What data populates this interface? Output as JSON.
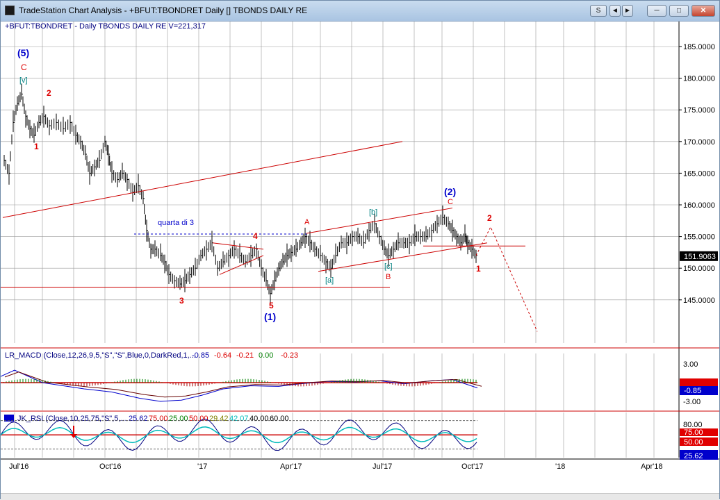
{
  "window": {
    "title": "TradeStation Chart Analysis - +BFUT:TBONDRET Daily [] TBONDS DAILY RE",
    "buttons": [
      "S",
      "◄",
      "►"
    ]
  },
  "price_panel": {
    "header": "+BFUT:TBONDRET - Daily  TBONDS DAILY RE   V=221,317",
    "y_ticks": [
      "185.0000",
      "180.0000",
      "175.0000",
      "170.0000",
      "165.0000",
      "160.0000",
      "155.0000",
      "150.0000",
      "145.0000"
    ],
    "y_tick_values": [
      185,
      180,
      175,
      170,
      165,
      160,
      155,
      150,
      145
    ],
    "last_price": "151.9063",
    "annotations": [
      {
        "text": "(5)",
        "color": "#0000cc",
        "bold": true,
        "size": 14
      },
      {
        "text": "C",
        "color": "#dd0000",
        "bold": false,
        "size": 12
      },
      {
        "text": "[v]",
        "color": "#008080",
        "bold": false,
        "size": 11
      },
      {
        "text": "2",
        "color": "#dd0000",
        "bold": true,
        "size": 12
      },
      {
        "text": "1",
        "color": "#dd0000",
        "bold": true,
        "size": 12
      },
      {
        "text": "quarta di 3",
        "color": "#0000cc",
        "bold": false,
        "size": 11
      },
      {
        "text": "4",
        "color": "#dd0000",
        "bold": true,
        "size": 12
      },
      {
        "text": "3",
        "color": "#dd0000",
        "bold": true,
        "size": 12
      },
      {
        "text": "5",
        "color": "#dd0000",
        "bold": true,
        "size": 12
      },
      {
        "text": "(1)",
        "color": "#0000cc",
        "bold": true,
        "size": 14
      },
      {
        "text": "A",
        "color": "#dd0000",
        "bold": false,
        "size": 11
      },
      {
        "text": "[a]",
        "color": "#008080",
        "bold": false,
        "size": 11
      },
      {
        "text": "[b]",
        "color": "#008080",
        "bold": false,
        "size": 11
      },
      {
        "text": "[c]",
        "color": "#008080",
        "bold": false,
        "size": 11
      },
      {
        "text": "B",
        "color": "#dd0000",
        "bold": false,
        "size": 11
      },
      {
        "text": "(2)",
        "color": "#0000cc",
        "bold": true,
        "size": 14
      },
      {
        "text": "C",
        "color": "#dd0000",
        "bold": false,
        "size": 11
      },
      {
        "text": "2",
        "color": "#dd0000",
        "bold": true,
        "size": 12
      },
      {
        "text": "1",
        "color": "#dd0000",
        "bold": true,
        "size": 12
      }
    ]
  },
  "macd_panel": {
    "header_label": "LR_MACD (Close,12,26,9,5,\"S\",\"S\",Blue,0,DarkRed,1,...",
    "values": [
      "-0.85",
      "-0.64",
      "-0.21",
      "0.00",
      "-0.23"
    ],
    "y_ticks": [
      "3.00",
      "-3.00"
    ],
    "last_tags": [
      {
        "text": "",
        "bg": "#e00000",
        "fg": "#ffffff"
      },
      {
        "text": "-0.85",
        "bg": "#0000cc",
        "fg": "#ffffff"
      }
    ]
  },
  "rsi_panel": {
    "header_label": "JK_RSI (Close,10,25,75,\"S\",5,...",
    "values": [
      {
        "text": "25.62",
        "color": "#0000aa"
      },
      {
        "text": "75.00",
        "color": "#dd0000"
      },
      {
        "text": "25.00",
        "color": "#008000"
      },
      {
        "text": "50.00",
        "color": "#dd0000"
      },
      {
        "text": "29.42",
        "color": "#808000"
      },
      {
        "text": "42.07",
        "color": "#00bbbb"
      },
      {
        "text": "40.00",
        "color": "#000000"
      },
      {
        "text": "60.00",
        "color": "#000000"
      }
    ],
    "y_ticks": [
      "80.00"
    ],
    "last_tags": [
      {
        "text": "75.00",
        "bg": "#e00000",
        "fg": "#ffffff"
      },
      {
        "text": "50.00",
        "bg": "#e00000",
        "fg": "#ffffff"
      },
      {
        "text": "25.62",
        "bg": "#0000cc",
        "fg": "#ffffff"
      }
    ]
  },
  "x_axis": {
    "labels": [
      "Jul'16",
      "Oct'16",
      "'17",
      "Apr'17",
      "Jul'17",
      "Oct'17",
      "'18",
      "Apr'18"
    ]
  },
  "colors": {
    "grid": "#9a9a9a",
    "bars": "#000000",
    "trendline": "#cc0000",
    "dashed_level": "#0000cc",
    "title_gradient_top": "#c9dcef"
  }
}
